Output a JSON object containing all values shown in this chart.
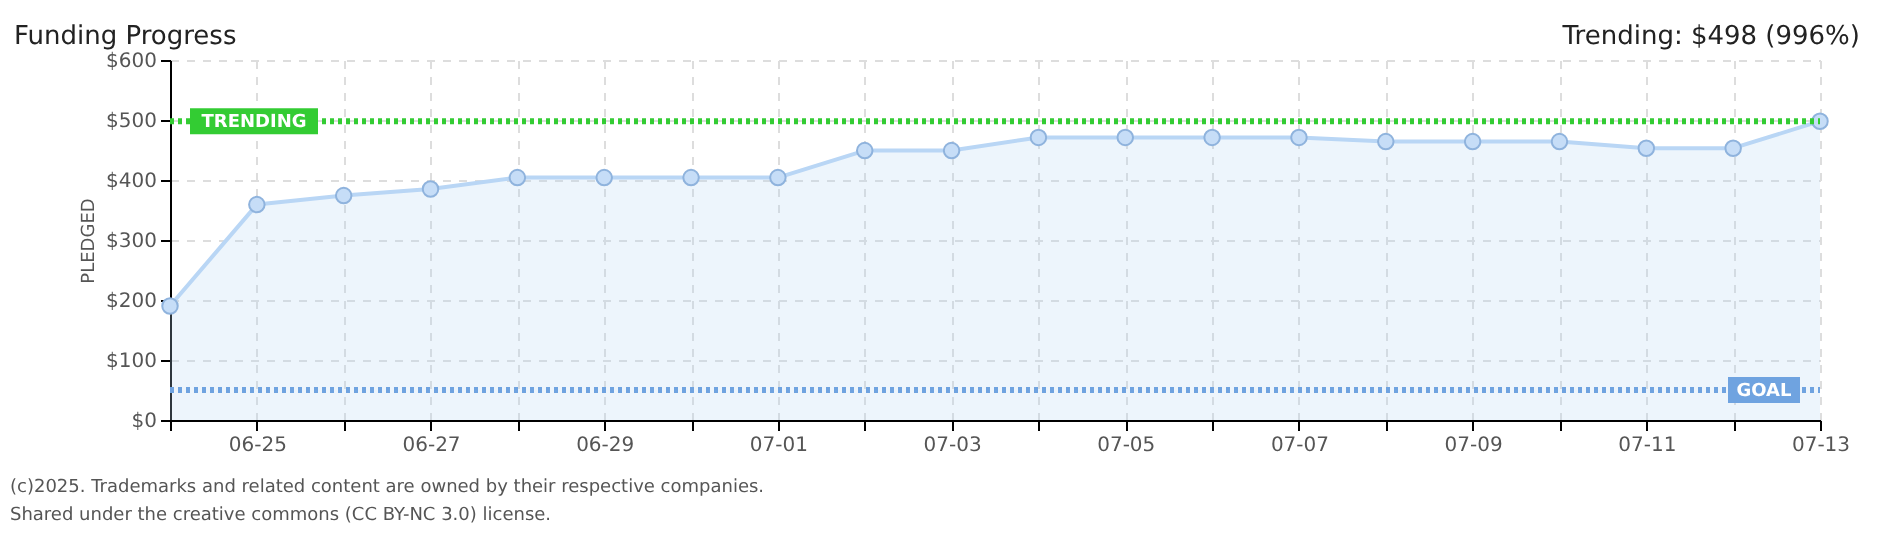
{
  "chart_data": {
    "type": "area",
    "title": "Funding Progress",
    "annotations": [
      "Trending: $498 (996%)",
      "(c)2025. Trademarks and related content are owned by their respective companies.",
      "Shared under the creative commons (CC BY-NC 3.0) license."
    ],
    "categories": [
      null,
      "06-25",
      null,
      "06-27",
      null,
      "06-29",
      null,
      "07-01",
      null,
      "07-03",
      null,
      "07-05",
      null,
      "07-07",
      null,
      "07-09",
      null,
      "07-11",
      null,
      "07-13"
    ],
    "series": [
      {
        "color": "#b9d6f5",
        "values": [
          190,
          359,
          374,
          385,
          404,
          404,
          404,
          404,
          449,
          449,
          471,
          471,
          471,
          471,
          464,
          464,
          464,
          453,
          453,
          498
        ]
      }
    ],
    "ylabel": "PLEDGED",
    "ylim": [
      0,
      600
    ],
    "yticks": [
      {
        "value": 0,
        "label": "$0"
      },
      {
        "value": 100,
        "label": "$100"
      },
      {
        "value": 200,
        "label": "$200"
      },
      {
        "value": 300,
        "label": "$300"
      },
      {
        "value": 400,
        "label": "$400"
      },
      {
        "value": 500,
        "label": "$500"
      },
      {
        "value": 600,
        "label": "$600"
      }
    ],
    "ref_lines": [
      {
        "axis": "y",
        "value": 498,
        "label": "TRENDING",
        "color": "#33cc33",
        "line_style": "dotted"
      },
      {
        "axis": "y",
        "value": 50,
        "label": "GOAL",
        "color": "#6fa3e0",
        "line_style": "dotted"
      }
    ],
    "grid": true,
    "marker": "circle"
  }
}
